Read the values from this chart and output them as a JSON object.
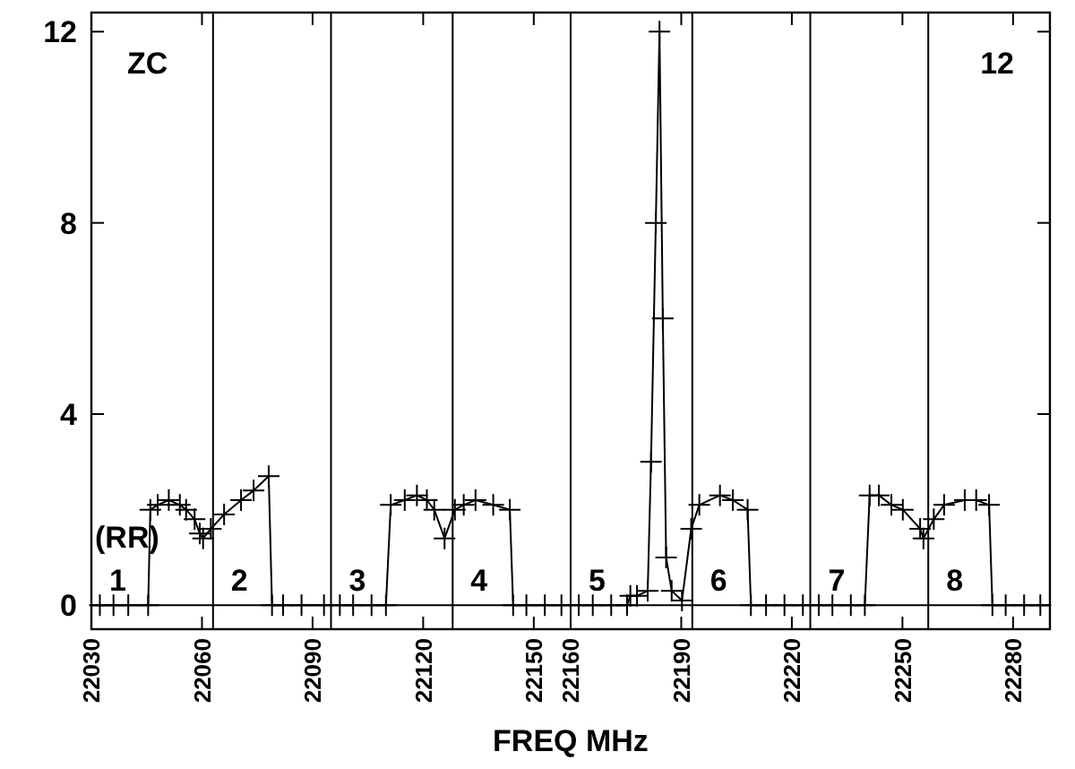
{
  "chart_data": {
    "type": "line",
    "xlabel": "FREQ MHz",
    "x": [
      22032.3,
      22036,
      22040,
      22045.4,
      22046,
      22048,
      22051,
      22054,
      22055.7,
      22058,
      22059.4,
      22060.3,
      22062.4,
      22066,
      22070.6,
      22074,
      22078.1,
      22079,
      22082,
      22087,
      22093.1,
      22097.4,
      22101,
      22106,
      22109.9,
      22111.2,
      22115,
      22118.3,
      22121,
      22123,
      22125.8,
      22128.6,
      22131,
      22134.2,
      22139,
      22143.5,
      22144.4,
      22148,
      22153,
      22157.5,
      22162.2,
      22166,
      22171,
      22175.3,
      22176.2,
      22178,
      22180.9,
      22181.8,
      22183.1,
      22184.1,
      22185,
      22185.9,
      22187.4,
      22190.2,
      22192.7,
      22194.9,
      22200.5,
      22204,
      22208,
      22208.9,
      22213,
      22218,
      22223,
      22227.3,
      22231,
      22236,
      22239.8,
      22241.1,
      22243.6,
      22247,
      22250.1,
      22254.8,
      22255.7,
      22258.5,
      22261.3,
      22266.9,
      22270,
      22273.5,
      22274.4,
      22278,
      22283,
      22287.4
    ],
    "values": [
      0,
      0,
      0,
      0,
      2.0,
      2.1,
      2.2,
      2.1,
      2.0,
      1.8,
      1.5,
      1.4,
      1.6,
      1.9,
      2.2,
      2.4,
      2.7,
      0,
      0,
      0,
      0,
      0,
      0,
      0,
      0,
      2.1,
      2.2,
      2.3,
      2.2,
      2.0,
      1.4,
      2.0,
      2.1,
      2.2,
      2.1,
      2.0,
      0,
      0,
      0,
      0,
      0,
      0,
      0,
      0,
      0.2,
      0.2,
      0.3,
      3,
      8,
      12,
      6,
      1,
      0.3,
      0.1,
      1.6,
      2.1,
      2.3,
      2.2,
      2.0,
      0,
      0,
      0,
      0,
      0,
      0,
      0,
      0,
      2.3,
      2.3,
      2.1,
      2.0,
      1.6,
      1.4,
      1.8,
      2.1,
      2.2,
      2.2,
      2.1,
      0,
      0,
      0,
      0
    ],
    "color": "#000000",
    "marker": "cross",
    "xlim": [
      22030,
      22290
    ],
    "xticks": [
      22030,
      22060,
      22090,
      22120,
      22150,
      22160,
      22190,
      22220,
      22250,
      22280
    ],
    "ylim": [
      -0.5,
      12.4
    ],
    "yticks": [
      0,
      4,
      8,
      12
    ],
    "ref_lines": [
      {
        "axis": "y",
        "value": 0
      },
      {
        "axis": "x",
        "value": 22063
      },
      {
        "axis": "x",
        "value": 22095
      },
      {
        "axis": "x",
        "value": 22128
      },
      {
        "axis": "x",
        "value": 22160
      },
      {
        "axis": "x",
        "value": 22193
      },
      {
        "axis": "x",
        "value": 22225
      },
      {
        "axis": "x",
        "value": 22257
      }
    ],
    "annotations": [
      "ZC",
      "12",
      "(RR)",
      "1",
      "2",
      "3",
      "4",
      "5",
      "6",
      "7",
      "8"
    ]
  }
}
